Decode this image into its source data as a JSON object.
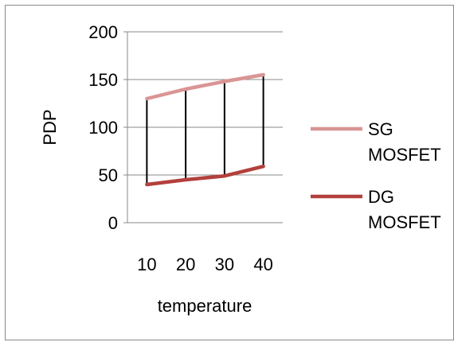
{
  "chart_data": {
    "type": "line",
    "x": [
      10,
      20,
      30,
      40
    ],
    "series": [
      {
        "name_lines": [
          "SG",
          "MOSFET"
        ],
        "values": [
          130,
          140,
          148,
          155
        ],
        "color": "#d99594"
      },
      {
        "name_lines": [
          "DG",
          "MOSFET"
        ],
        "values": [
          40,
          45,
          49,
          59
        ],
        "color": "#b3403c"
      }
    ],
    "drop_lines": true,
    "xlabel": "temperature",
    "ylabel": "PDP",
    "ylim": [
      0,
      200
    ],
    "yticks": [
      0,
      50,
      100,
      150,
      200
    ],
    "xticks": [
      "10",
      "20",
      "30",
      "40"
    ],
    "grid": "horizontal",
    "legend_position": "right"
  }
}
